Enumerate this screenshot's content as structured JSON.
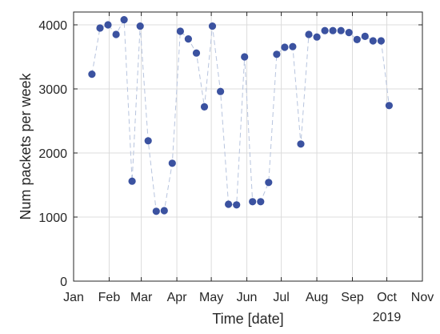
{
  "chart_data": {
    "type": "scatter",
    "xlabel": "Time [date]",
    "ylabel": "Num packets per week",
    "year_label": "2019",
    "x_tick_labels": [
      "Jan",
      "Feb",
      "Mar",
      "Apr",
      "May",
      "Jun",
      "Jul",
      "Aug",
      "Sep",
      "Oct",
      "Nov"
    ],
    "x_ticks": [
      "2019-01-01",
      "2019-02-01",
      "2019-03-01",
      "2019-04-01",
      "2019-05-01",
      "2019-06-01",
      "2019-07-01",
      "2019-08-01",
      "2019-09-01",
      "2019-10-01",
      "2019-11-01"
    ],
    "xlim": [
      "2019-01-01",
      "2019-11-01"
    ],
    "ylim": [
      0,
      4200
    ],
    "y_ticks": [
      0,
      1000,
      2000,
      3000,
      4000
    ],
    "grid": true,
    "colors": {
      "marker": "#3b52a0",
      "line": "#b7c4de"
    },
    "series": [
      {
        "x": [
          "2019-01-17",
          "2019-01-24",
          "2019-01-31",
          "2019-02-07",
          "2019-02-14",
          "2019-02-21",
          "2019-02-28",
          "2019-03-07",
          "2019-03-14",
          "2019-03-21",
          "2019-03-28",
          "2019-04-04",
          "2019-04-11",
          "2019-04-18",
          "2019-04-25",
          "2019-05-02",
          "2019-05-09",
          "2019-05-16",
          "2019-05-23",
          "2019-05-30",
          "2019-06-06",
          "2019-06-13",
          "2019-06-20",
          "2019-06-27",
          "2019-07-04",
          "2019-07-11",
          "2019-07-18",
          "2019-07-25",
          "2019-08-01",
          "2019-08-08",
          "2019-08-15",
          "2019-08-22",
          "2019-08-29",
          "2019-09-05",
          "2019-09-12",
          "2019-09-19",
          "2019-09-26",
          "2019-10-03"
        ],
        "y": [
          3230,
          3950,
          4000,
          3850,
          4080,
          1560,
          3980,
          2190,
          1090,
          1100,
          1840,
          3900,
          3780,
          3560,
          2720,
          3980,
          2960,
          1200,
          1190,
          3500,
          1240,
          1240,
          1540,
          3540,
          3650,
          3660,
          2140,
          3850,
          3810,
          3910,
          3910,
          3910,
          3880,
          3770,
          3820,
          3750,
          3750,
          2740
        ]
      }
    ]
  }
}
